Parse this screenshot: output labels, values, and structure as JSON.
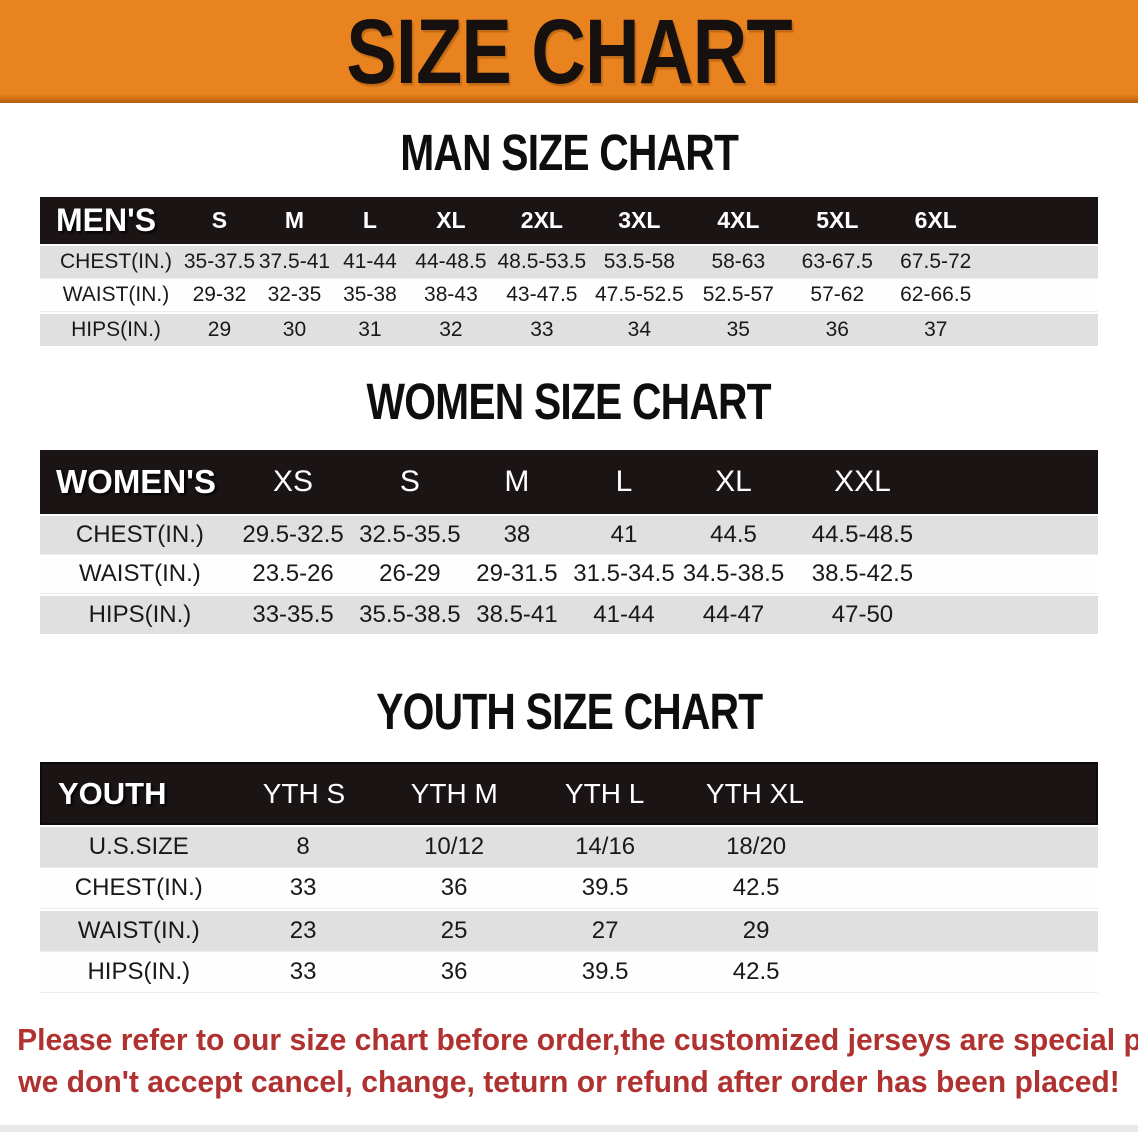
{
  "banner": {
    "title": "SIZE CHART",
    "background": "#e8831f"
  },
  "men": {
    "heading": "MAN SIZE CHART",
    "corner": "MEN'S",
    "sizes": [
      "S",
      "M",
      "L",
      "XL",
      "2XL",
      "3XL",
      "4XL",
      "5XL",
      "6XL"
    ],
    "rows": [
      {
        "label": "CHEST(IN.)",
        "values": [
          "35-37.5",
          "37.5-41",
          "41-44",
          "44-48.5",
          "48.5-53.5",
          "53.5-58",
          "58-63",
          "63-67.5",
          "67.5-72"
        ]
      },
      {
        "label": "WAIST(IN.)",
        "values": [
          "29-32",
          "32-35",
          "35-38",
          "38-43",
          "43-47.5",
          "47.5-52.5",
          "52.5-57",
          "57-62",
          "62-66.5"
        ]
      },
      {
        "label": "HIPS(IN.)",
        "values": [
          "29",
          "30",
          "31",
          "32",
          "33",
          "34",
          "35",
          "36",
          "37"
        ]
      }
    ]
  },
  "women": {
    "heading": "WOMEN SIZE CHART",
    "corner": "WOMEN'S",
    "sizes": [
      "XS",
      "S",
      "M",
      "L",
      "XL",
      "XXL"
    ],
    "rows": [
      {
        "label": "CHEST(IN.)",
        "values": [
          "29.5-32.5",
          "32.5-35.5",
          "38",
          "41",
          "44.5",
          "44.5-48.5"
        ]
      },
      {
        "label": "WAIST(IN.)",
        "values": [
          "23.5-26",
          "26-29",
          "29-31.5",
          "31.5-34.5",
          "34.5-38.5",
          "38.5-42.5"
        ]
      },
      {
        "label": "HIPS(IN.)",
        "values": [
          "33-35.5",
          "35.5-38.5",
          "38.5-41",
          "41-44",
          "44-47",
          "47-50"
        ]
      }
    ]
  },
  "youth": {
    "heading": "YOUTH SIZE CHART",
    "corner": "YOUTH",
    "sizes": [
      "YTH S",
      "YTH M",
      "YTH L",
      "YTH XL"
    ],
    "rows": [
      {
        "label": "U.S.SIZE",
        "values": [
          "8",
          "10/12",
          "14/16",
          "18/20"
        ]
      },
      {
        "label": "CHEST(IN.)",
        "values": [
          "33",
          "36",
          "39.5",
          "42.5"
        ]
      },
      {
        "label": "WAIST(IN.)",
        "values": [
          "23",
          "25",
          "27",
          "29"
        ]
      },
      {
        "label": "HIPS(IN.)",
        "values": [
          "33",
          "36",
          "39.5",
          "42.5"
        ]
      }
    ]
  },
  "footer": {
    "line1": "Please refer to our size chart before order,the customized jerseys are special products,",
    "line2": "we don't accept cancel, change, teturn or refund after order has been placed!"
  },
  "colors": {
    "banner_orange": "#e8831f",
    "header_black": "#1a1415",
    "row_gray": "#e0e0e0",
    "note_red": "#b03230"
  }
}
